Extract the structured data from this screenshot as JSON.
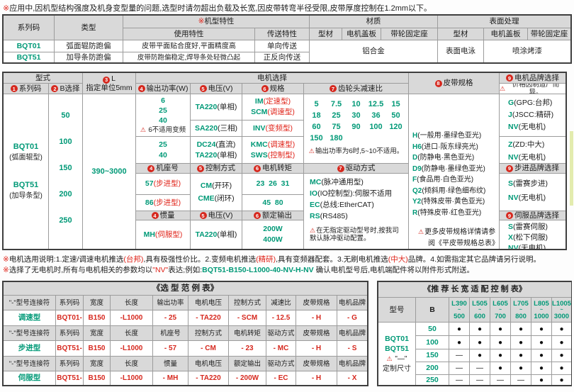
{
  "top_note": [
    {
      "t": "※",
      "c": "red"
    },
    {
      "t": "应用中,因机型结构强度及机身变型量的问题,选型时请勿超出负载及长宽,因皮带转弯半径受限,皮带厚度控制在1.2mm以下。",
      "c": "black"
    }
  ],
  "spec_table": {
    "h_series": "系列码",
    "h_type": "类型",
    "h_feature": [
      {
        "t": "※",
        "c": "red"
      },
      {
        "t": "机型特性",
        "c": "black"
      }
    ],
    "h_material": "材质",
    "h_surface": "表面处理",
    "h_use": "使用特性",
    "h_transfer": "传送特性",
    "h_profile": "型材",
    "h_cover": "电机盖板",
    "h_pulley": "带轮固定座",
    "h_profile2": "型材",
    "h_cover2": "电机盖板",
    "h_pulley2": "带轮固定座",
    "rows": [
      {
        "code": "BQT01",
        "type": "弧面辊防跑偏",
        "use": "皮带平面贴合度好,平面精度高",
        "transfer": "单向传送"
      },
      {
        "code": "BQT51",
        "type": "加导条防跑偏",
        "use": "皮带防跑偏稳定,焊导条处轻微凸起",
        "transfer": "正反向传送"
      }
    ],
    "material_all": "铝合金",
    "surface_profile": "表面电泳",
    "surface_paint": "喷涂烤漆"
  },
  "main": {
    "h_style": "型式",
    "h_series": {
      "n": "1",
      "t": "系列码"
    },
    "h_b": {
      "n": "2",
      "t": "B选择"
    },
    "h_l": {
      "n": "3",
      "t": "L",
      "sub": "指定单位5mm"
    },
    "h_motor": "电机选择",
    "h_power": {
      "n": "4",
      "t": "输出功率(W)"
    },
    "h_volt": {
      "n": "5",
      "t": "电压(V)"
    },
    "h_spec": {
      "n": "6",
      "t": "规格"
    },
    "h_gear": {
      "n": "7",
      "t": "齿轮头减速比"
    },
    "h_belt": {
      "n": "8",
      "t": "皮带规格"
    },
    "h_brand": {
      "n": "9",
      "t": "电机品牌选择"
    },
    "brand_note": [
      {
        "t": "⚠",
        "c": "warn"
      },
      {
        "t": "价格因制造厂而异。",
        "c": "black"
      }
    ],
    "series": {
      "code1": "BQT01",
      "label1": "(弧面辊型)",
      "code2": "BQT51",
      "label2": "(加导条型)"
    },
    "b_values": [
      "50",
      "100",
      "150",
      "200",
      "250"
    ],
    "l_range": "390~3000",
    "powerA": [
      "6",
      "25",
      "40"
    ],
    "powerA_note": [
      {
        "t": "⚠ ",
        "c": "warn"
      },
      {
        "t": "6不适用变频",
        "c": "black"
      }
    ],
    "powerB": [
      "25",
      "40"
    ],
    "voltA1": [
      {
        "t": "TA220",
        "c": "teal"
      },
      {
        "t": "(单相)",
        "c": "black"
      }
    ],
    "voltA2": [
      {
        "t": "SA220",
        "c": "teal"
      },
      {
        "t": "(三相)",
        "c": "black"
      }
    ],
    "voltB1": [
      {
        "t": "DC24",
        "c": "teal"
      },
      {
        "t": "(直流)",
        "c": "black"
      }
    ],
    "voltB2": [
      {
        "t": "TA220",
        "c": "teal"
      },
      {
        "t": "(单相)",
        "c": "black"
      }
    ],
    "specA1a": [
      {
        "t": "IM",
        "c": "teal"
      },
      {
        "t": "(定速型)",
        "c": "red"
      }
    ],
    "specA1b": [
      {
        "t": "SCM",
        "c": "teal"
      },
      {
        "t": "(调速型)",
        "c": "red"
      }
    ],
    "specA2": [
      {
        "t": "INV",
        "c": "teal"
      },
      {
        "t": "(变频型)",
        "c": "red"
      }
    ],
    "specB1": [
      {
        "t": "KMC",
        "c": "teal"
      },
      {
        "t": "(调速型)",
        "c": "red"
      }
    ],
    "specB2": [
      {
        "t": "SWS",
        "c": "teal"
      },
      {
        "t": "(控制型)",
        "c": "red"
      }
    ],
    "gear_values": [
      "5",
      "7.5",
      "10",
      "12.5",
      "15",
      "18",
      "25",
      "30",
      "36",
      "50",
      "60",
      "75",
      "90",
      "100",
      "120",
      "150",
      "180",
      "",
      "",
      ""
    ],
    "gear_note": [
      {
        "t": "⚠",
        "c": "warn"
      },
      {
        "t": "输出功率为6时,5~10不适用。",
        "c": "black"
      }
    ],
    "h_frame": {
      "n": "4",
      "t": "机座号"
    },
    "h_ctrl": {
      "n": "5",
      "t": "控制方式"
    },
    "h_torque": {
      "n": "6",
      "t": "电机转矩"
    },
    "h_drive": {
      "n": "7",
      "t": "驱动方式"
    },
    "frame1": [
      {
        "t": "57",
        "c": "teal"
      },
      {
        "t": "(步进型)",
        "c": "red"
      }
    ],
    "frame2": [
      {
        "t": "86",
        "c": "teal"
      },
      {
        "t": "(步进型)",
        "c": "red"
      }
    ],
    "ctrl1": [
      {
        "t": "CM",
        "c": "teal"
      },
      {
        "t": "(开环)",
        "c": "black"
      }
    ],
    "ctrl2": [
      {
        "t": "CME",
        "c": "teal"
      },
      {
        "t": "(闭环)",
        "c": "black"
      }
    ],
    "torque1": "23  26  31",
    "torque2": "45  80",
    "drives": [
      [
        {
          "t": "MC",
          "c": "teal"
        },
        {
          "t": "(脉冲通用型)",
          "c": "black"
        }
      ],
      [
        {
          "t": "IO",
          "c": "teal"
        },
        {
          "t": "(IO控制型):伺服不适用",
          "c": "black"
        }
      ],
      [
        {
          "t": "EC",
          "c": "teal"
        },
        {
          "t": "(总线:EtherCAT)",
          "c": "black"
        }
      ],
      [
        {
          "t": "RS",
          "c": "teal"
        },
        {
          "t": "(RS485)",
          "c": "black"
        }
      ]
    ],
    "drive_note": [
      {
        "t": "⚠",
        "c": "warn"
      },
      {
        "t": "在无指定驱动型号时,按我司默认脉冲驱动配置。",
        "c": "black"
      }
    ],
    "h_inertia": {
      "n": "4",
      "t": "惯量"
    },
    "h_volt2": {
      "n": "5",
      "t": "电压(V)"
    },
    "h_rated": {
      "n": "6",
      "t": "额定输出"
    },
    "inertia": [
      {
        "t": "MH",
        "c": "teal"
      },
      {
        "t": "(伺服型)",
        "c": "red"
      }
    ],
    "voltF": [
      {
        "t": "TA220",
        "c": "teal"
      },
      {
        "t": "(单相)",
        "c": "black"
      }
    ],
    "rated": [
      "200W",
      "400W"
    ],
    "belts": [
      [
        {
          "t": "H",
          "c": "teal"
        },
        {
          "t": "(一般用·墨绿色亚光)",
          "c": "black"
        }
      ],
      [
        {
          "t": "H6",
          "c": "teal"
        },
        {
          "t": "(进口·阪东绿亮光)",
          "c": "black"
        }
      ],
      [
        {
          "t": "D",
          "c": "teal"
        },
        {
          "t": "(防静电·黑色亚光)",
          "c": "black"
        }
      ],
      [
        {
          "t": "D9",
          "c": "teal"
        },
        {
          "t": "(防静电·墨绿色亚光)",
          "c": "black"
        }
      ],
      [
        {
          "t": "F",
          "c": "teal"
        },
        {
          "t": "(食品用·白色亚光)",
          "c": "black"
        }
      ],
      [
        {
          "t": "Q2",
          "c": "teal"
        },
        {
          "t": "(倾斜用·绿色细布纹)",
          "c": "black"
        }
      ],
      [
        {
          "t": "Y2",
          "c": "teal"
        },
        {
          "t": "(特殊皮带·黄色亚光)",
          "c": "black"
        }
      ],
      [
        {
          "t": "R",
          "c": "teal"
        },
        {
          "t": "(特殊皮带·红色亚光)",
          "c": "black"
        }
      ]
    ],
    "belt_note1": [
      {
        "t": "⚠",
        "c": "warn"
      },
      {
        "t": "更多皮带规格详情请参",
        "c": "black"
      }
    ],
    "belt_note2": "阅《平皮带规格总表》",
    "brandsA": [
      [
        {
          "t": "G",
          "c": "teal"
        },
        {
          "t": "(GPG:台邦)",
          "c": "black"
        }
      ],
      [
        {
          "t": "J",
          "c": "teal"
        },
        {
          "t": "(JSCC:精研)",
          "c": "black"
        }
      ],
      [
        {
          "t": "NV",
          "c": "teal"
        },
        {
          "t": "(无电机)",
          "c": "black"
        }
      ]
    ],
    "brandsB": [
      [
        {
          "t": "Z",
          "c": "teal"
        },
        {
          "t": "(ZD:中大)",
          "c": "black"
        }
      ],
      [
        {
          "t": "NV",
          "c": "teal"
        },
        {
          "t": "(无电机)",
          "c": "black"
        }
      ]
    ],
    "h_brand_step": {
      "n": "9",
      "t": "步进品牌选择"
    },
    "brands_step": [
      [
        {
          "t": "S",
          "c": "teal"
        },
        {
          "t": "(雷赛步进)",
          "c": "black"
        }
      ],
      [
        {
          "t": "NV",
          "c": "teal"
        },
        {
          "t": "(无电机)",
          "c": "black"
        }
      ]
    ],
    "h_brand_servo": {
      "n": "9",
      "t": "伺服品牌选择"
    },
    "brands_servo": [
      [
        {
          "t": "S",
          "c": "teal"
        },
        {
          "t": "(雷赛伺服)",
          "c": "black"
        }
      ],
      [
        {
          "t": "X",
          "c": "teal"
        },
        {
          "t": "(松下伺服)",
          "c": "black"
        }
      ],
      [
        {
          "t": "NV",
          "c": "teal"
        },
        {
          "t": "(无电机)",
          "c": "black"
        }
      ]
    ]
  },
  "note1": [
    {
      "t": "※",
      "c": "red"
    },
    {
      "t": "电机选用说明:1.定速/调速电机推选",
      "c": "black"
    },
    {
      "t": "(台邦)",
      "c": "red"
    },
    {
      "t": ",具有极强性价比。2.变频电机推选",
      "c": "black"
    },
    {
      "t": "(精研)",
      "c": "red"
    },
    {
      "t": ",具有变频器配套。3.无刷电机推选",
      "c": "black"
    },
    {
      "t": "(中大)",
      "c": "red"
    },
    {
      "t": "品牌。4.如需指定其它品牌请另行说明。",
      "c": "black"
    }
  ],
  "note2": [
    {
      "t": "※",
      "c": "red"
    },
    {
      "t": "选择了无电机时,所有与电机相关的参数均以",
      "c": "black"
    },
    {
      "t": "\"NV\"",
      "c": "red"
    },
    {
      "t": "表达;例如:",
      "c": "black"
    },
    {
      "t": "BQT51-B150-L1000-40-NV-H-NV",
      "c": "teal"
    },
    {
      "t": " 确认电机型号后,电机端配件将以附件形式附送。",
      "c": "black"
    }
  ],
  "example": {
    "title": "《选 型 范 例 表》",
    "groups": [
      {
        "label": "调速型",
        "header": [
          "\"-\"型号连接符",
          "系列码",
          "宽度",
          "长度",
          "输出功率",
          "电机电压",
          "控制方式",
          "减速比",
          "皮带规格",
          "电机品牌"
        ],
        "cells": [
          "BQT01-",
          "B150",
          "-L1000",
          "- 25",
          "- TA220",
          "- SCM",
          "- 12.5",
          "- H",
          "- G"
        ]
      },
      {
        "label": "步进型",
        "header": [
          "\"-\"型号连接符",
          "系列码",
          "宽度",
          "长度",
          "机座号",
          "控制方式",
          "电机转矩",
          "驱动方式",
          "皮带规格",
          "电机品牌"
        ],
        "cells": [
          "BQT51-",
          "B150",
          "-L1000",
          "- 57",
          "- CM",
          "- 23",
          "- MC",
          "- H",
          "- S"
        ]
      },
      {
        "label": "伺服型",
        "header": [
          "\"-\"型号连接符",
          "系列码",
          "宽度",
          "长度",
          "惯量",
          "电机电压",
          "额定输出",
          "驱动方式",
          "皮带规格",
          "电机品牌"
        ],
        "cells": [
          "BQT51-",
          "B150",
          "-L1000",
          "- MH",
          "- TA220",
          "- 200W",
          "- EC",
          "- H",
          "- X"
        ]
      }
    ]
  },
  "rec": {
    "title": "《推 荐 长 宽 适 配 控 制 表》",
    "h_model": "型号",
    "h_b": "B",
    "tilde": "~",
    "l_cols": [
      {
        "a": "L390",
        "b": "500"
      },
      {
        "a": "L505",
        "b": "600"
      },
      {
        "a": "L605",
        "b": "700"
      },
      {
        "a": "L705",
        "b": "800"
      },
      {
        "a": "L805",
        "b": "1000"
      },
      {
        "a": "L1005",
        "b": "3000"
      }
    ],
    "model_line1": "BQT01",
    "model_line2": "BQT51",
    "model_line3": [
      {
        "t": "⚠",
        "c": "warn"
      },
      {
        "t": " \"—\"",
        "c": "black"
      }
    ],
    "model_line4": "定制尺寸",
    "rows": [
      {
        "b": "50",
        "marks": [
          "●",
          "●",
          "●",
          "●",
          "●",
          "●"
        ]
      },
      {
        "b": "100",
        "marks": [
          "●",
          "●",
          "●",
          "●",
          "●",
          "●"
        ]
      },
      {
        "b": "150",
        "marks": [
          "—",
          "●",
          "●",
          "●",
          "●",
          "●"
        ]
      },
      {
        "b": "200",
        "marks": [
          "—",
          "—",
          "●",
          "●",
          "●",
          "●"
        ]
      },
      {
        "b": "250",
        "marks": [
          "—",
          "—",
          "—",
          "—",
          "●",
          "●"
        ]
      }
    ]
  }
}
